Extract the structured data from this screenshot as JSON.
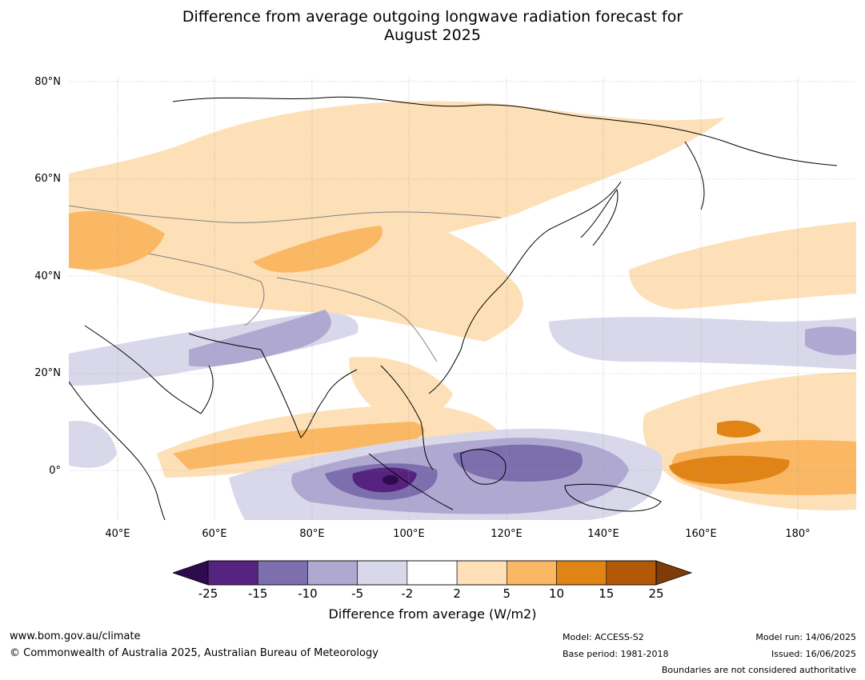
{
  "title_line1": "Difference from average outgoing longwave radiation forecast for",
  "title_line2": "August 2025",
  "map": {
    "lat_labels": [
      "80°N",
      "60°N",
      "40°N",
      "20°N",
      "0°"
    ],
    "lon_labels": [
      "40°E",
      "60°E",
      "80°E",
      "100°E",
      "120°E",
      "140°E",
      "160°E",
      "180°"
    ],
    "lon_range": [
      30,
      192
    ],
    "lat_range": [
      -10,
      81
    ],
    "colors": {
      "neg25": "#2d0b4e",
      "neg15": "#56227f",
      "neg10": "#7d6fae",
      "neg5": "#afa9d1",
      "neg2": "#d8d8ea",
      "zero": "#ffffff",
      "pos2": "#fde0b7",
      "pos5": "#fbb864",
      "pos10": "#e18416",
      "pos15": "#b35806",
      "pos25": "#7f3b08"
    }
  },
  "colorbar": {
    "ticks": [
      "-25",
      "-15",
      "-10",
      "-5",
      "-2",
      "2",
      "5",
      "10",
      "15",
      "25"
    ],
    "colors": [
      "#56227f",
      "#7d6fae",
      "#afa9d1",
      "#d8d8ea",
      "#ffffff",
      "#fde0b7",
      "#fbb864",
      "#e18416",
      "#b35806"
    ],
    "under_color": "#2d0b4e",
    "over_color": "#7f3b08",
    "title": "Difference from average (W/m2)"
  },
  "footer": {
    "url": "www.bom.gov.au/climate",
    "copyright": "© Commonwealth of Australia 2025, Australian Bureau of Meteorology",
    "model": "Model: ACCESS-S2",
    "base_period": "Base period: 1981-2018",
    "model_run": "Model run: 14/06/2025",
    "issued": "Issued: 16/06/2025",
    "boundaries": "Boundaries are not considered authoritative"
  }
}
